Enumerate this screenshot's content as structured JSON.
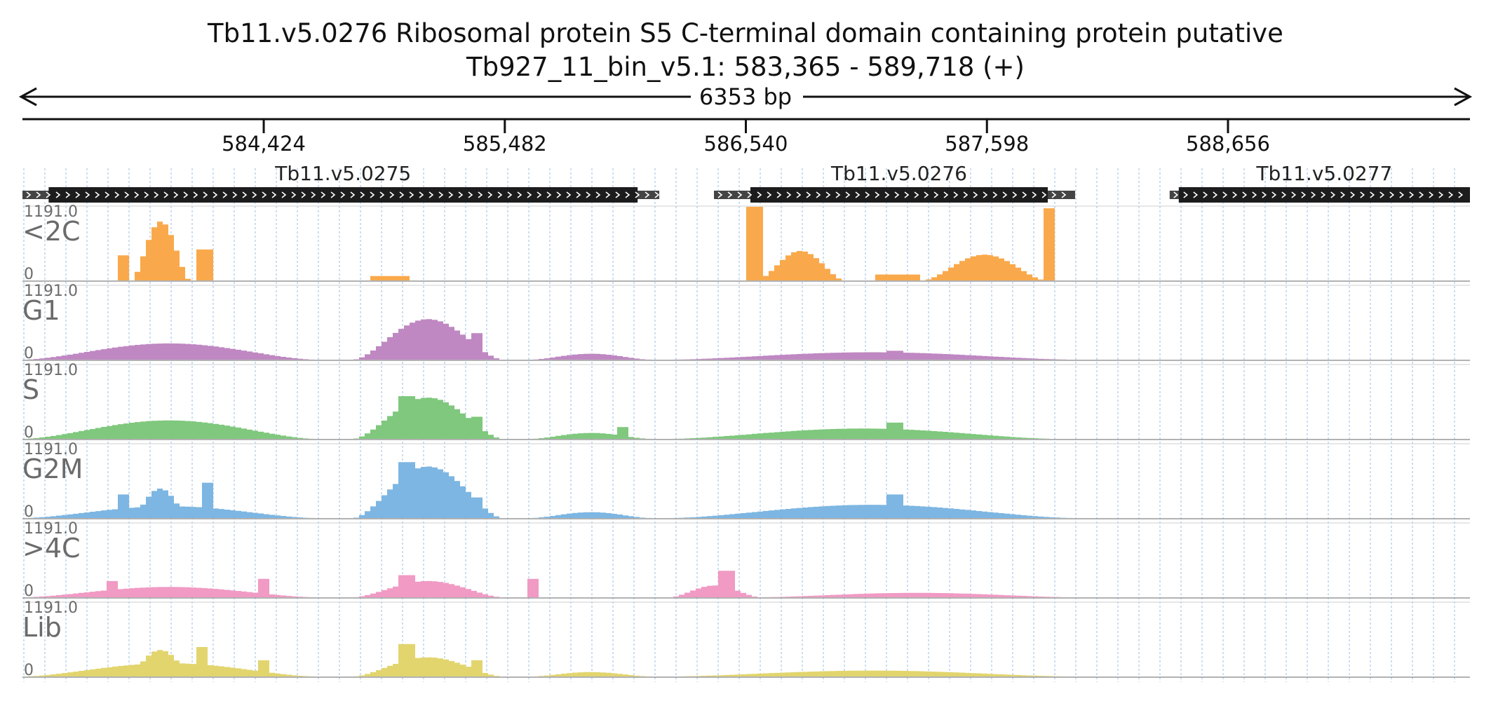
{
  "title": "Tb11.v5.0276  Ribosomal protein S5  C-terminal domain containing protein  putative",
  "subtitle": "Tb927_11_bin_v5.1: 583,365 - 589,718 (+)",
  "span_label": "6353 bp",
  "chart_data": {
    "type": "area",
    "region": {
      "start": 583365,
      "end": 589718
    },
    "axis_ticks": [
      {
        "value": 584424,
        "label": "584,424"
      },
      {
        "value": 585482,
        "label": "585,482"
      },
      {
        "value": 586540,
        "label": "586,540"
      },
      {
        "value": 587598,
        "label": "587,598"
      },
      {
        "value": 588656,
        "label": "588,656"
      }
    ],
    "genes": [
      {
        "name": "Tb11.v5.0275",
        "utr_start": 583365,
        "cds_start": 583480,
        "cds_end": 586065,
        "utr_end": 586160
      },
      {
        "name": "Tb11.v5.0276",
        "utr_start": 586400,
        "cds_start": 586560,
        "cds_end": 587865,
        "utr_end": 587985
      },
      {
        "name": "Tb11.v5.0277",
        "utr_start": 588400,
        "cds_start": 588440,
        "cds_end": 589718,
        "utr_end": 589718
      }
    ],
    "tracks": [
      {
        "name": "<2C",
        "color": "#f9a94b",
        "ymax_label": "1191.0",
        "ymin_label": "0",
        "peaks": [
          {
            "type": "box",
            "start": 583795,
            "end": 583845,
            "value": 0.34
          },
          {
            "type": "hump",
            "start": 583845,
            "end": 584100,
            "value": 0.8
          },
          {
            "type": "box",
            "start": 584125,
            "end": 584195,
            "value": 0.42
          },
          {
            "type": "box",
            "start": 584895,
            "end": 585065,
            "value": 0.06
          },
          {
            "type": "box",
            "start": 586545,
            "end": 586605,
            "value": 1.0
          },
          {
            "type": "hump",
            "start": 586590,
            "end": 586970,
            "value": 0.4
          },
          {
            "type": "box",
            "start": 587120,
            "end": 587300,
            "value": 0.08
          },
          {
            "type": "hump",
            "start": 587320,
            "end": 587855,
            "value": 0.35
          },
          {
            "type": "box",
            "start": 587855,
            "end": 587905,
            "value": 0.98
          }
        ]
      },
      {
        "name": "G1",
        "color": "#bf88c2",
        "ymax_label": "1191.0",
        "ymin_label": "0",
        "peaks": [
          {
            "type": "hump",
            "start": 583370,
            "end": 584650,
            "value": 0.22
          },
          {
            "type": "box",
            "start": 584100,
            "end": 584155,
            "value": 0.16
          },
          {
            "type": "hump",
            "start": 584820,
            "end": 585470,
            "value": 0.55
          },
          {
            "type": "box",
            "start": 585100,
            "end": 585160,
            "value": 0.46
          },
          {
            "type": "box",
            "start": 585345,
            "end": 585395,
            "value": 0.36
          },
          {
            "type": "hump",
            "start": 585600,
            "end": 586120,
            "value": 0.08
          },
          {
            "type": "hump",
            "start": 586210,
            "end": 587980,
            "value": 0.1
          },
          {
            "type": "box",
            "start": 587160,
            "end": 587230,
            "value": 0.12
          }
        ]
      },
      {
        "name": "S",
        "color": "#7fc87d",
        "ymax_label": "1191.0",
        "ymin_label": "0",
        "peaks": [
          {
            "type": "hump",
            "start": 583370,
            "end": 584650,
            "value": 0.25
          },
          {
            "type": "hump",
            "start": 584820,
            "end": 585470,
            "value": 0.56
          },
          {
            "type": "box",
            "start": 585020,
            "end": 585100,
            "value": 0.58
          },
          {
            "type": "box",
            "start": 585345,
            "end": 585395,
            "value": 0.3
          },
          {
            "type": "box",
            "start": 585970,
            "end": 586030,
            "value": 0.16
          },
          {
            "type": "hump",
            "start": 585600,
            "end": 586120,
            "value": 0.08
          },
          {
            "type": "hump",
            "start": 586210,
            "end": 587900,
            "value": 0.14
          },
          {
            "type": "box",
            "start": 587160,
            "end": 587230,
            "value": 0.22
          }
        ]
      },
      {
        "name": "G2M",
        "color": "#7db6e2",
        "ymax_label": "1191.0",
        "ymin_label": "0",
        "peaks": [
          {
            "type": "box",
            "start": 583790,
            "end": 583840,
            "value": 0.32
          },
          {
            "type": "hump",
            "start": 583840,
            "end": 584100,
            "value": 0.4
          },
          {
            "type": "box",
            "start": 584145,
            "end": 584190,
            "value": 0.48
          },
          {
            "type": "hump",
            "start": 583370,
            "end": 584650,
            "value": 0.16
          },
          {
            "type": "hump",
            "start": 584820,
            "end": 585470,
            "value": 0.7
          },
          {
            "type": "box",
            "start": 585020,
            "end": 585100,
            "value": 0.76
          },
          {
            "type": "box",
            "start": 585345,
            "end": 585395,
            "value": 0.28
          },
          {
            "type": "hump",
            "start": 585600,
            "end": 586120,
            "value": 0.08
          },
          {
            "type": "hump",
            "start": 586210,
            "end": 587980,
            "value": 0.18
          },
          {
            "type": "box",
            "start": 587160,
            "end": 587230,
            "value": 0.32
          }
        ]
      },
      {
        "name": ">4C",
        "color": "#f09ac4",
        "ymax_label": "1191.0",
        "ymin_label": "0",
        "peaks": [
          {
            "type": "hump",
            "start": 583370,
            "end": 584650,
            "value": 0.14
          },
          {
            "type": "box",
            "start": 583730,
            "end": 583790,
            "value": 0.22
          },
          {
            "type": "box",
            "start": 584410,
            "end": 584460,
            "value": 0.25
          },
          {
            "type": "hump",
            "start": 584820,
            "end": 585470,
            "value": 0.22
          },
          {
            "type": "box",
            "start": 585020,
            "end": 585100,
            "value": 0.3
          },
          {
            "type": "box",
            "start": 585570,
            "end": 585620,
            "value": 0.25
          },
          {
            "type": "hump",
            "start": 586210,
            "end": 586600,
            "value": 0.16
          },
          {
            "type": "box",
            "start": 586430,
            "end": 586490,
            "value": 0.36
          },
          {
            "type": "hump",
            "start": 586600,
            "end": 587980,
            "value": 0.06
          }
        ]
      },
      {
        "name": "Lib",
        "color": "#e2d56e",
        "ymax_label": "1191.0",
        "ymin_label": "0",
        "peaks": [
          {
            "type": "hump",
            "start": 583370,
            "end": 584650,
            "value": 0.18
          },
          {
            "type": "hump",
            "start": 583820,
            "end": 584120,
            "value": 0.36
          },
          {
            "type": "box",
            "start": 584130,
            "end": 584175,
            "value": 0.4
          },
          {
            "type": "box",
            "start": 584410,
            "end": 584460,
            "value": 0.22
          },
          {
            "type": "hump",
            "start": 584820,
            "end": 585470,
            "value": 0.26
          },
          {
            "type": "box",
            "start": 585020,
            "end": 585100,
            "value": 0.44
          },
          {
            "type": "box",
            "start": 585345,
            "end": 585395,
            "value": 0.22
          },
          {
            "type": "hump",
            "start": 585600,
            "end": 586120,
            "value": 0.06
          },
          {
            "type": "hump",
            "start": 586210,
            "end": 587980,
            "value": 0.08
          }
        ]
      }
    ]
  }
}
